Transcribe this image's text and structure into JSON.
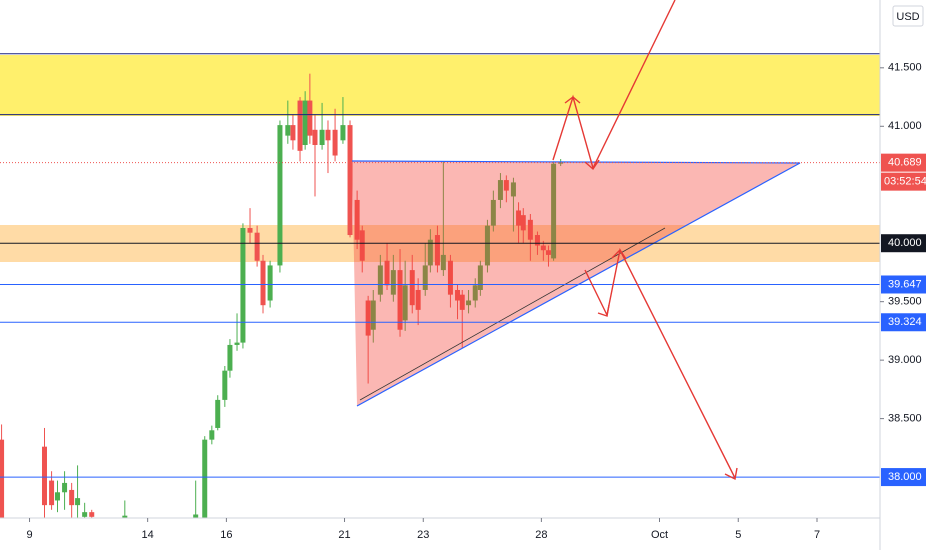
{
  "chart_data": {
    "type": "candlestick",
    "currency": "USD",
    "countdown": "03:52:54",
    "up_color": "#4caf50",
    "down_color": "#ef5350",
    "x": [
      -0.71,
      0.38,
      0.56,
      0.71,
      0.89,
      1.07,
      1.22,
      1.4,
      1.58,
      2.42,
      4.22,
      4.45,
      4.63,
      4.78,
      4.96,
      5.09,
      5.27,
      5.42,
      5.6,
      5.78,
      5.93,
      6.11,
      6.36,
      6.56,
      6.69,
      6.87,
      7.0,
      7.12,
      7.25,
      7.43,
      7.58,
      7.76,
      7.96,
      8.14,
      8.32,
      8.45,
      8.6,
      8.73,
      8.91,
      9.08,
      9.24,
      9.41,
      9.54,
      9.72,
      9.87,
      10.05,
      10.18,
      10.36,
      10.51,
      10.69,
      10.87,
      10.99,
      11.15,
      11.32,
      11.45,
      11.63,
      11.78,
      11.96,
      12.11,
      12.29,
      12.42,
      12.54,
      12.72,
      12.9,
      13.05,
      13.18,
      13.31,
      13.49
    ],
    "open": [
      38.32,
      38.26,
      37.97,
      37.8,
      37.87,
      37.89,
      37.76,
      37.66,
      37.7,
      37.65,
      37.65,
      37.65,
      38.32,
      38.42,
      38.66,
      38.91,
      39.13,
      39.15,
      40.13,
      40.09,
      39.85,
      39.51,
      39.81,
      40.92,
      41.01,
      41.22,
      40.84,
      41.22,
      40.97,
      40.84,
      40.97,
      40.97,
      40.88,
      41.01,
      40.37,
      40.11,
      39.51,
      39.26,
      39.56,
      39.85,
      39.56,
      39.77,
      39.34,
      39.77,
      39.6,
      39.6,
      39.81,
      40.07,
      39.77,
      39.85,
      39.6,
      39.56,
      39.47,
      39.51,
      39.6,
      39.81,
      40.15,
      40.37,
      40.54,
      40.4,
      40.28,
      40.24,
      40.2,
      40.07,
      39.98,
      39.94,
      39.87,
      40.68
    ],
    "high": [
      38.45,
      38.42,
      38.05,
      37.97,
      38.05,
      37.95,
      38.1,
      37.78,
      37.72,
      37.8,
      37.97,
      38.35,
      38.44,
      38.7,
      38.95,
      39.18,
      39.4,
      40.17,
      40.3,
      40.15,
      39.9,
      39.85,
      41.05,
      41.22,
      41.1,
      41.25,
      41.3,
      41.45,
      41.1,
      41.2,
      41.05,
      41.15,
      41.25,
      41.05,
      40.45,
      40.15,
      39.55,
      39.6,
      39.9,
      40.0,
      39.9,
      39.95,
      39.85,
      39.9,
      39.7,
      40.0,
      40.12,
      40.15,
      40.7,
      39.9,
      39.65,
      39.6,
      39.6,
      39.7,
      39.85,
      40.2,
      40.45,
      40.6,
      40.58,
      40.56,
      40.35,
      40.3,
      40.25,
      40.1,
      40.02,
      39.98,
      40.7,
      40.72
    ],
    "low": [
      37.65,
      37.65,
      37.72,
      37.7,
      37.72,
      37.65,
      37.65,
      37.65,
      37.65,
      37.65,
      37.65,
      37.65,
      38.28,
      38.4,
      38.6,
      38.85,
      39.08,
      39.1,
      40.0,
      39.8,
      39.4,
      39.45,
      39.75,
      40.85,
      40.8,
      40.7,
      40.8,
      40.85,
      40.4,
      40.8,
      40.6,
      40.7,
      40.85,
      40.05,
      39.95,
      39.75,
      38.8,
      39.15,
      39.5,
      39.6,
      39.5,
      39.2,
      39.25,
      39.4,
      39.3,
      39.55,
      39.75,
      39.75,
      39.72,
      39.45,
      39.35,
      39.1,
      39.4,
      39.45,
      39.55,
      39.75,
      40.1,
      40.3,
      40.35,
      40.1,
      40.0,
      40.0,
      39.85,
      39.9,
      39.85,
      39.8,
      39.85,
      40.66
    ],
    "close": [
      37.65,
      37.76,
      37.76,
      37.87,
      37.95,
      37.76,
      37.82,
      37.7,
      37.66,
      37.67,
      37.68,
      38.32,
      38.4,
      38.66,
      38.91,
      39.13,
      39.15,
      40.13,
      40.09,
      39.85,
      39.47,
      39.81,
      41.01,
      41.01,
      40.88,
      40.79,
      41.22,
      40.92,
      40.84,
      40.97,
      40.88,
      40.75,
      41.01,
      40.07,
      40.03,
      39.85,
      39.21,
      39.51,
      39.81,
      39.64,
      39.77,
      39.26,
      39.64,
      39.47,
      39.43,
      39.81,
      40.03,
      39.81,
      39.9,
      39.56,
      39.51,
      39.43,
      39.51,
      39.64,
      39.81,
      40.15,
      40.37,
      40.54,
      40.45,
      40.52,
      40.15,
      40.11,
      40.03,
      39.98,
      39.94,
      39.9,
      40.68,
      40.69
    ],
    "xlim": [
      -0.75,
      21.6
    ],
    "xticks": [
      {
        "value": 0,
        "label": "9"
      },
      {
        "value": 3,
        "label": "14"
      },
      {
        "value": 5,
        "label": "16"
      },
      {
        "value": 8,
        "label": "21"
      },
      {
        "value": 10,
        "label": "23"
      },
      {
        "value": 13,
        "label": "28"
      },
      {
        "value": 16,
        "label": "Oct"
      },
      {
        "value": 18,
        "label": "5"
      },
      {
        "value": 20,
        "label": "7"
      }
    ],
    "ylim": [
      37.65,
      42.08
    ],
    "yticks": [
      {
        "value": 41.5,
        "label": "41.500"
      },
      {
        "value": 41,
        "label": "41.000"
      },
      {
        "value": 39.5,
        "label": "39.500"
      },
      {
        "value": 39,
        "label": "39.000"
      },
      {
        "value": 38.5,
        "label": "38.500"
      }
    ],
    "price_lines": [
      {
        "value": 41.62,
        "color": "#1a237e"
      },
      {
        "value": 41.1,
        "color": "#1a237e"
      },
      {
        "value": 40.689,
        "label": "40.689",
        "color": "#ef5350",
        "style": "dotted"
      },
      {
        "value": 40,
        "label": "40.000",
        "color": "#131722"
      },
      {
        "value": 39.647,
        "label": "39.647",
        "color": "#2962ff"
      },
      {
        "value": 39.324,
        "label": "39.324",
        "color": "#2962ff"
      },
      {
        "value": 38,
        "label": "38.000",
        "color": "#2962ff"
      }
    ]
  }
}
